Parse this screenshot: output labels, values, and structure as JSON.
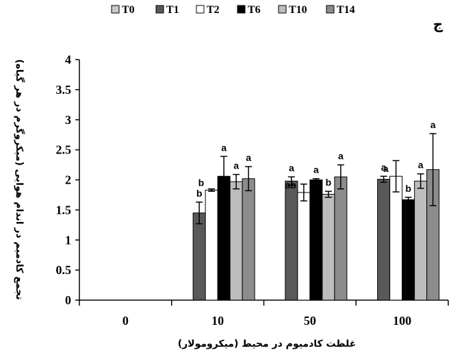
{
  "chart_data": {
    "type": "bar",
    "panel_label": "ج",
    "xlabel": "غلظت کادمیوم در محیط (میکرومولار)",
    "ylabel": "تجمع کادمیم در اندام هوایی (میکروگرم در هر گیاه)",
    "categories": [
      "0",
      "10",
      "50",
      "100"
    ],
    "ylim": [
      0,
      4
    ],
    "yticks": [
      "0",
      "0.5",
      "1",
      "1.5",
      "2",
      "2.5",
      "3",
      "3.5",
      "4"
    ],
    "legend_position": "top",
    "grid": false,
    "series": [
      {
        "name": "T0",
        "color": "#c8c8c8",
        "values": [
          0,
          0,
          0,
          0
        ],
        "errors": [
          0,
          0,
          0,
          0
        ],
        "letters": [
          "",
          "",
          "",
          ""
        ]
      },
      {
        "name": "T1",
        "color": "#595959",
        "values": [
          0,
          1.45,
          1.98,
          2.01
        ],
        "errors": [
          0,
          0.18,
          0.07,
          0.05
        ],
        "letters": [
          "",
          "b",
          "a",
          "a"
        ]
      },
      {
        "name": "T2",
        "color": "#ffffff",
        "values": [
          0,
          1.83,
          1.79,
          2.06
        ],
        "errors": [
          0,
          0.02,
          0.14,
          0.26
        ],
        "letters": [
          "",
          "b",
          "ab",
          "a"
        ]
      },
      {
        "name": "T6",
        "color": "#000000",
        "values": [
          0,
          2.06,
          2.0,
          1.67
        ],
        "errors": [
          0,
          0.33,
          0.02,
          0.04
        ],
        "letters": [
          "",
          "a",
          "a",
          "b"
        ]
      },
      {
        "name": "T10",
        "color": "#bdbdbd",
        "values": [
          0,
          1.97,
          1.76,
          1.98
        ],
        "errors": [
          0,
          0.12,
          0.05,
          0.12
        ],
        "letters": [
          "",
          "a",
          "b",
          "a"
        ]
      },
      {
        "name": "T14",
        "color": "#8c8c8c",
        "values": [
          0,
          2.02,
          2.05,
          2.17
        ],
        "errors": [
          0,
          0.2,
          0.2,
          0.6
        ],
        "letters": [
          "",
          "a",
          "a",
          "a"
        ]
      }
    ]
  }
}
